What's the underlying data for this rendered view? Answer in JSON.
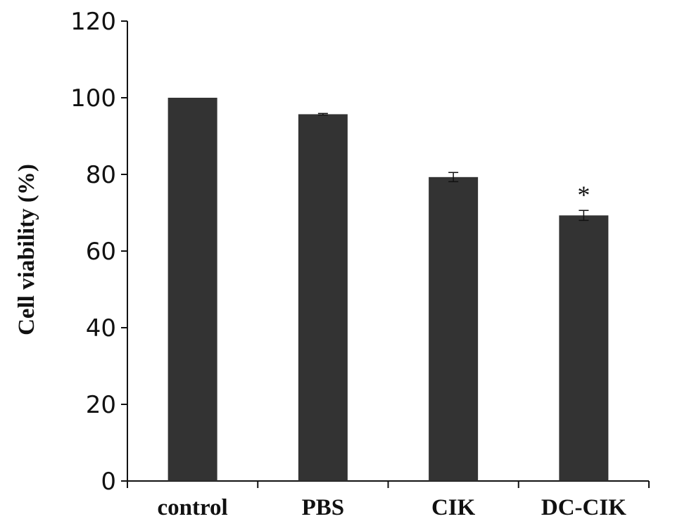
{
  "chart_data": {
    "type": "bar",
    "title": "",
    "xlabel": "",
    "ylabel": "Cell viability (%)",
    "categories": [
      "control",
      "PBS",
      "CIK",
      "DC-CIK"
    ],
    "values": [
      100,
      95.7,
      79.3,
      69.3
    ],
    "errors": [
      0,
      0.2,
      1.2,
      1.3
    ],
    "annotations": [
      "",
      "",
      "",
      "*"
    ],
    "ylim": [
      0,
      120
    ],
    "yticks": [
      0,
      20,
      40,
      60,
      80,
      100,
      120
    ],
    "grid": false,
    "bar_color": "#333333"
  }
}
